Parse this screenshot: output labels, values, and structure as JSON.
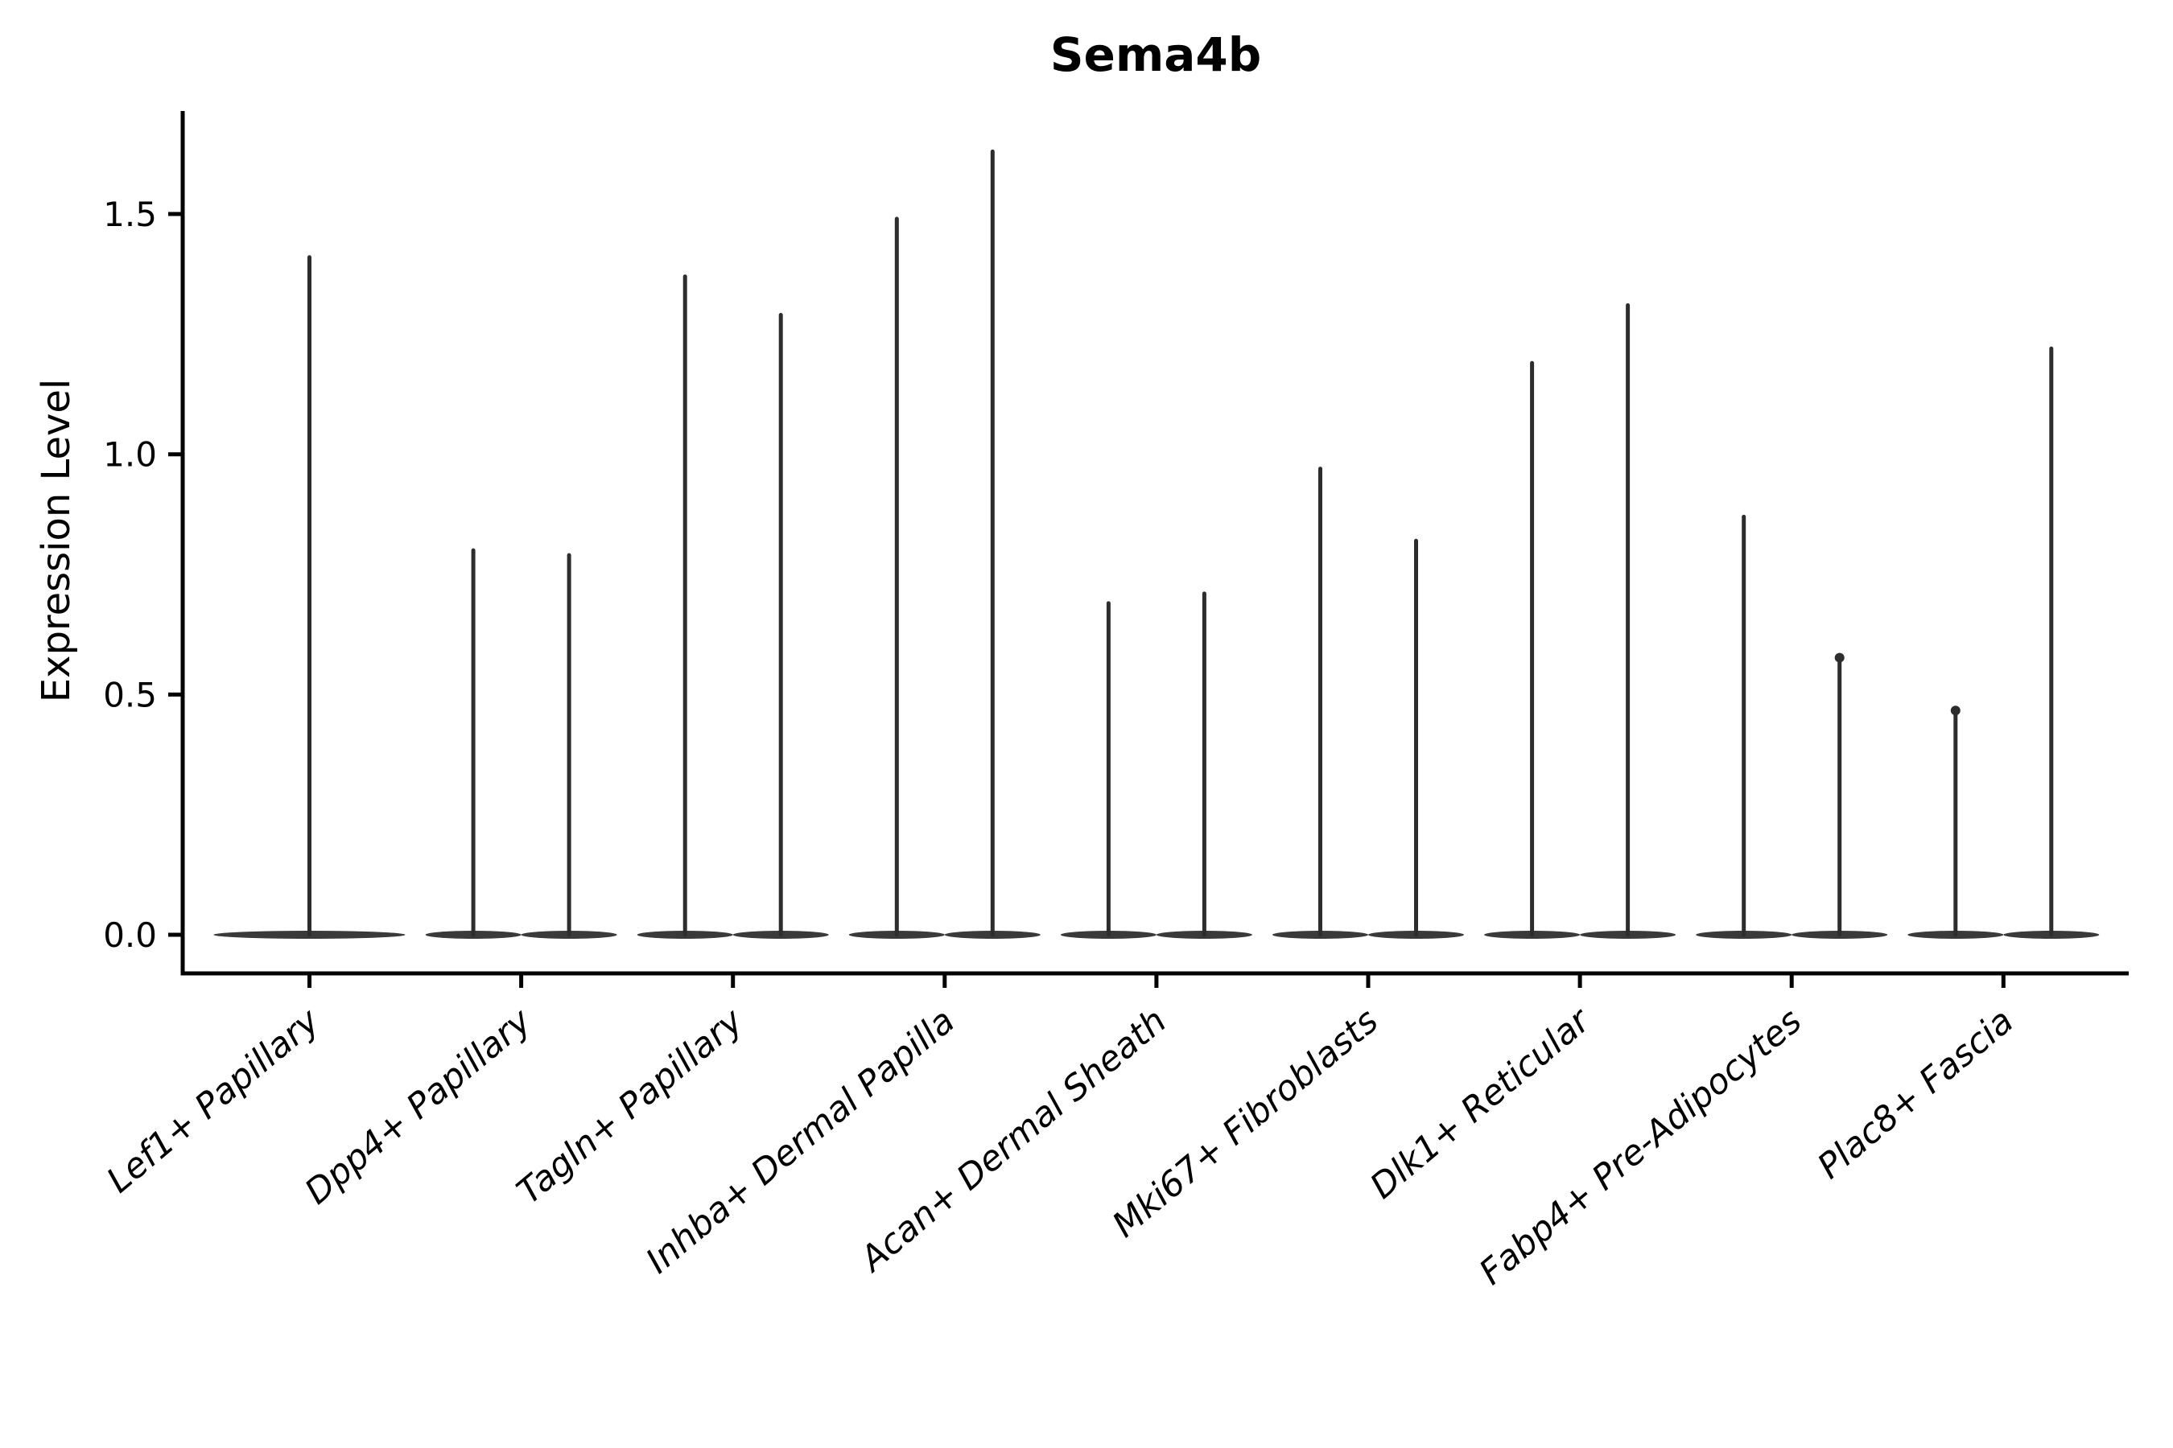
{
  "title": "Sema4b",
  "axes": {
    "ylabel": "Expression Level",
    "ytick_labels": [
      "0.0",
      "0.5",
      "1.0",
      "1.5"
    ]
  },
  "chart_data": {
    "type": "violin",
    "title": "Sema4b",
    "ylabel": "Expression Level",
    "xlabel": "",
    "ylim": [
      0,
      1.71
    ],
    "ytick_values": [
      0.0,
      0.5,
      1.0,
      1.5
    ],
    "ytick_labels": [
      "0.0",
      "0.5",
      "1.0",
      "1.5"
    ],
    "grid": false,
    "legend": null,
    "x_tick_label_rotation_deg": -40,
    "x_tick_label_style": "italic",
    "categories": [
      "Lef1+ Papillary",
      "Dpp4+ Papillary",
      "Tagln+ Papillary",
      "Inhba+ Dermal Papilla",
      "Acan+ Dermal Sheath",
      "Mki67+ Fibroblasts",
      "Dlk1+ Reticular",
      "Fabp4+ Pre-Adipocytes",
      "Plac8+ Fascia"
    ],
    "series": [
      {
        "category": "Lef1+ Papillary",
        "violins": [
          {
            "peak": 1.41,
            "position": "center",
            "knob": false
          }
        ]
      },
      {
        "category": "Dpp4+ Papillary",
        "violins": [
          {
            "peak": 0.8,
            "position": "left",
            "knob": false
          },
          {
            "peak": 0.79,
            "position": "right",
            "knob": false
          }
        ]
      },
      {
        "category": "Tagln+ Papillary",
        "violins": [
          {
            "peak": 1.37,
            "position": "left",
            "knob": false
          },
          {
            "peak": 1.29,
            "position": "right",
            "knob": false
          }
        ]
      },
      {
        "category": "Inhba+ Dermal Papilla",
        "violins": [
          {
            "peak": 1.49,
            "position": "left",
            "knob": false
          },
          {
            "peak": 1.63,
            "position": "right",
            "knob": false
          }
        ]
      },
      {
        "category": "Acan+ Dermal Sheath",
        "violins": [
          {
            "peak": 0.69,
            "position": "left",
            "knob": false
          },
          {
            "peak": 0.71,
            "position": "right",
            "knob": false
          }
        ]
      },
      {
        "category": "Mki67+ Fibroblasts",
        "violins": [
          {
            "peak": 0.97,
            "position": "left",
            "knob": false
          },
          {
            "peak": 0.82,
            "position": "right",
            "knob": false
          }
        ]
      },
      {
        "category": "Dlk1+ Reticular",
        "violins": [
          {
            "peak": 1.19,
            "position": "left",
            "knob": false
          },
          {
            "peak": 1.31,
            "position": "right",
            "knob": false
          }
        ]
      },
      {
        "category": "Fabp4+ Pre-Adipocytes",
        "violins": [
          {
            "peak": 0.87,
            "position": "left",
            "knob": false
          },
          {
            "peak": 0.58,
            "position": "right",
            "knob": true
          }
        ]
      },
      {
        "category": "Plac8+ Fascia",
        "violins": [
          {
            "peak": 0.47,
            "position": "left",
            "knob": true
          },
          {
            "peak": 1.22,
            "position": "right",
            "knob": false
          }
        ]
      }
    ],
    "colors": {
      "violin_stroke": "#2d2d2d",
      "violin_base": "#3a3a3a",
      "axis": "#000000",
      "text": "#000000"
    }
  }
}
